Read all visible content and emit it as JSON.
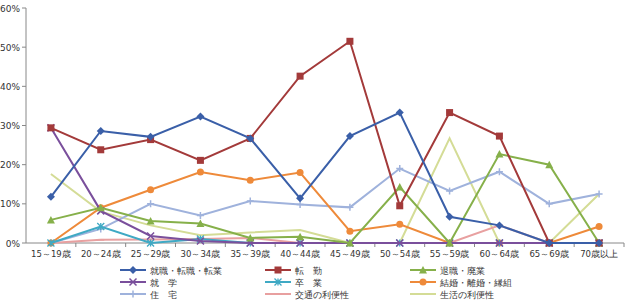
{
  "chart_data": {
    "type": "line",
    "categories": [
      "15～19歳",
      "20～24歳",
      "25～29歳",
      "30～34歳",
      "35～39歳",
      "40～44歳",
      "45～49歳",
      "50～54歳",
      "55～59歳",
      "60～64歳",
      "65～69歳",
      "70歳以上"
    ],
    "ylim": [
      0,
      60
    ],
    "yticks": [
      {
        "value": 0,
        "label": "0%"
      },
      {
        "value": 10,
        "label": "10%"
      },
      {
        "value": 20,
        "label": "20%"
      },
      {
        "value": 30,
        "label": "30%"
      },
      {
        "value": 40,
        "label": "40%"
      },
      {
        "value": 50,
        "label": "50%"
      },
      {
        "value": 60,
        "label": "60%"
      }
    ],
    "grid": false,
    "legend": "bottom",
    "series": [
      {
        "name": "就職・転職・転業",
        "color": "#3a5fa8",
        "marker": "diamond",
        "values": [
          11.8,
          28.6,
          27.1,
          32.3,
          26.7,
          11.4,
          27.3,
          33.3,
          6.7,
          4.5,
          0,
          0
        ]
      },
      {
        "name": "転　勤",
        "color": "#a33a3a",
        "marker": "square",
        "values": [
          29.4,
          23.8,
          26.4,
          21.1,
          26.7,
          42.6,
          51.5,
          9.5,
          33.3,
          27.3,
          0,
          0
        ]
      },
      {
        "name": "退職・廃業",
        "color": "#86b04a",
        "marker": "triangle",
        "values": [
          5.9,
          9.0,
          5.6,
          5.0,
          1.3,
          1.6,
          0,
          14.3,
          0,
          22.7,
          20.0,
          0
        ]
      },
      {
        "name": "就　学",
        "color": "#7a4f9c",
        "marker": "x",
        "values": [
          29.4,
          8.2,
          1.8,
          0.5,
          0,
          0,
          0,
          0,
          0,
          0,
          0,
          0
        ]
      },
      {
        "name": "卒　業",
        "color": "#3fa9c4",
        "marker": "star",
        "values": [
          0,
          4.2,
          0,
          1.0,
          0,
          0,
          0,
          0,
          0,
          0,
          0,
          0
        ]
      },
      {
        "name": "結婚・離婚・縁組",
        "color": "#ee8a3a",
        "marker": "circle",
        "values": [
          0,
          9.0,
          13.6,
          18.1,
          16.0,
          18.0,
          3.0,
          4.8,
          0,
          0,
          0,
          4.2
        ]
      },
      {
        "name": "住　宅",
        "color": "#9fb2dc",
        "marker": "plus",
        "values": [
          0,
          3.6,
          10.0,
          7.0,
          10.7,
          9.8,
          9.1,
          19.0,
          13.3,
          18.2,
          10.0,
          12.5
        ]
      },
      {
        "name": "交通の利便性",
        "color": "#e8a0a0",
        "marker": "dash",
        "values": [
          0,
          0.8,
          0.9,
          1.0,
          1.3,
          0,
          0,
          0,
          0,
          4.5,
          0,
          0
        ]
      },
      {
        "name": "生活の利便性",
        "color": "#d4dc96",
        "marker": "none",
        "values": [
          17.6,
          8.0,
          4.5,
          2.0,
          2.7,
          3.3,
          0,
          0,
          26.7,
          0,
          0,
          12.5
        ]
      }
    ]
  }
}
